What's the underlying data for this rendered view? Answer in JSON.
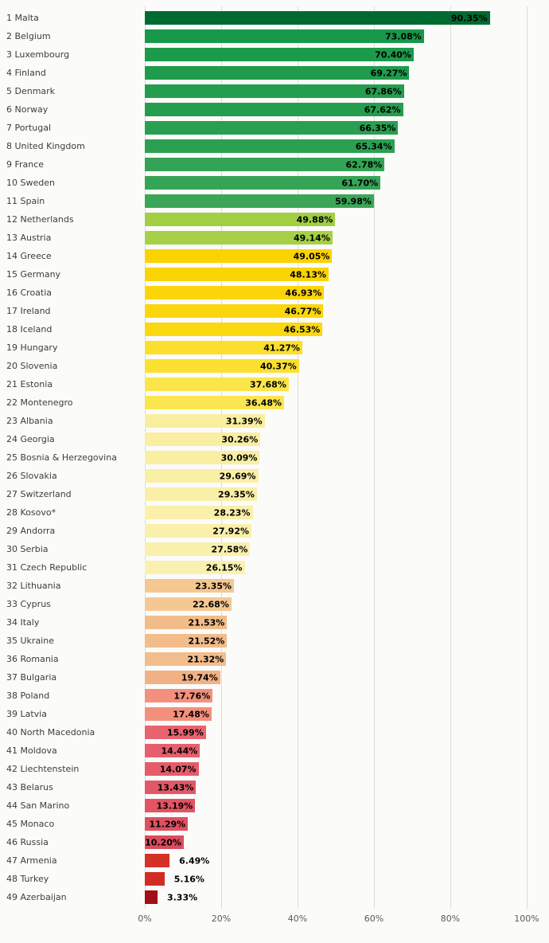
{
  "chart_data": {
    "type": "bar",
    "orientation": "horizontal",
    "title": "",
    "xlabel": "",
    "ylabel": "",
    "xlim": [
      0,
      100
    ],
    "grid": true,
    "x_ticks": [
      "0%",
      "20%",
      "40%",
      "60%",
      "80%",
      "100%"
    ],
    "rows": [
      {
        "rank": 1,
        "country": "Malta",
        "value": 90.35,
        "label": "90.35%",
        "color": "#006b31"
      },
      {
        "rank": 2,
        "country": "Belgium",
        "value": 73.08,
        "label": "73.08%",
        "color": "#17984a"
      },
      {
        "rank": 3,
        "country": "Luxembourg",
        "value": 70.4,
        "label": "70.40%",
        "color": "#1c9a4c"
      },
      {
        "rank": 4,
        "country": "Finland",
        "value": 69.27,
        "label": "69.27%",
        "color": "#1f9b4d"
      },
      {
        "rank": 5,
        "country": "Denmark",
        "value": 67.86,
        "label": "67.86%",
        "color": "#239d4e"
      },
      {
        "rank": 6,
        "country": "Norway",
        "value": 67.62,
        "label": "67.62%",
        "color": "#259d4f"
      },
      {
        "rank": 7,
        "country": "Portugal",
        "value": 66.35,
        "label": "66.35%",
        "color": "#299f51"
      },
      {
        "rank": 8,
        "country": "United Kingdom",
        "value": 65.34,
        "label": "65.34%",
        "color": "#2ca052"
      },
      {
        "rank": 9,
        "country": "France",
        "value": 62.78,
        "label": "62.78%",
        "color": "#33a355"
      },
      {
        "rank": 10,
        "country": "Sweden",
        "value": 61.7,
        "label": "61.70%",
        "color": "#36a456"
      },
      {
        "rank": 11,
        "country": "Spain",
        "value": 59.98,
        "label": "59.98%",
        "color": "#3ba658"
      },
      {
        "rank": 12,
        "country": "Netherlands",
        "value": 49.88,
        "label": "49.88%",
        "color": "#a2ce44"
      },
      {
        "rank": 13,
        "country": "Austria",
        "value": 49.14,
        "label": "49.14%",
        "color": "#a6d046"
      },
      {
        "rank": 14,
        "country": "Greece",
        "value": 49.05,
        "label": "49.05%",
        "color": "#fbd301"
      },
      {
        "rank": 15,
        "country": "Germany",
        "value": 48.13,
        "label": "48.13%",
        "color": "#fbd405"
      },
      {
        "rank": 16,
        "country": "Croatia",
        "value": 46.93,
        "label": "46.93%",
        "color": "#fbd50a"
      },
      {
        "rank": 17,
        "country": "Ireland",
        "value": 46.77,
        "label": "46.77%",
        "color": "#fbd60d"
      },
      {
        "rank": 18,
        "country": "Iceland",
        "value": 46.53,
        "label": "46.53%",
        "color": "#fbd710"
      },
      {
        "rank": 19,
        "country": "Hungary",
        "value": 41.27,
        "label": "41.27%",
        "color": "#fbdf2c"
      },
      {
        "rank": 20,
        "country": "Slovenia",
        "value": 40.37,
        "label": "40.37%",
        "color": "#fbe032"
      },
      {
        "rank": 21,
        "country": "Estonia",
        "value": 37.68,
        "label": "37.68%",
        "color": "#fce54a"
      },
      {
        "rank": 22,
        "country": "Montenegro",
        "value": 36.48,
        "label": "36.48%",
        "color": "#fce650"
      },
      {
        "rank": 23,
        "country": "Albania",
        "value": 31.39,
        "label": "31.39%",
        "color": "#f9ee9e"
      },
      {
        "rank": 24,
        "country": "Georgia",
        "value": 30.26,
        "label": "30.26%",
        "color": "#f9eea1"
      },
      {
        "rank": 25,
        "country": "Bosnia & Herzegovina",
        "value": 30.09,
        "label": "30.09%",
        "color": "#f9efa3"
      },
      {
        "rank": 26,
        "country": "Slovakia",
        "value": 29.69,
        "label": "29.69%",
        "color": "#f9efa5"
      },
      {
        "rank": 27,
        "country": "Switzerland",
        "value": 29.35,
        "label": "29.35%",
        "color": "#f9efa7"
      },
      {
        "rank": 28,
        "country": "Kosovo*",
        "value": 28.23,
        "label": "28.23%",
        "color": "#faf0a9"
      },
      {
        "rank": 29,
        "country": "Andorra",
        "value": 27.92,
        "label": "27.92%",
        "color": "#faf0ab"
      },
      {
        "rank": 30,
        "country": "Serbia",
        "value": 27.58,
        "label": "27.58%",
        "color": "#faf0ad"
      },
      {
        "rank": 31,
        "country": "Czech Republic",
        "value": 26.15,
        "label": "26.15%",
        "color": "#faf1b0"
      },
      {
        "rank": 32,
        "country": "Lithuania",
        "value": 23.35,
        "label": "23.35%",
        "color": "#f5c791"
      },
      {
        "rank": 33,
        "country": "Cyprus",
        "value": 22.68,
        "label": "22.68%",
        "color": "#f5c893"
      },
      {
        "rank": 34,
        "country": "Italy",
        "value": 21.53,
        "label": "21.53%",
        "color": "#f2bc89"
      },
      {
        "rank": 35,
        "country": "Ukraine",
        "value": 21.52,
        "label": "21.52%",
        "color": "#f2bc8b"
      },
      {
        "rank": 36,
        "country": "Romania",
        "value": 21.32,
        "label": "21.32%",
        "color": "#f2bd8d"
      },
      {
        "rank": 37,
        "country": "Bulgaria",
        "value": 19.74,
        "label": "19.74%",
        "color": "#f1b185"
      },
      {
        "rank": 38,
        "country": "Poland",
        "value": 17.76,
        "label": "17.76%",
        "color": "#f3907d"
      },
      {
        "rank": 39,
        "country": "Latvia",
        "value": 17.48,
        "label": "17.48%",
        "color": "#f38f7b"
      },
      {
        "rank": 40,
        "country": "North Macedonia",
        "value": 15.99,
        "label": "15.99%",
        "color": "#e96370"
      },
      {
        "rank": 41,
        "country": "Moldova",
        "value": 14.44,
        "label": "14.44%",
        "color": "#e75f6d"
      },
      {
        "rank": 42,
        "country": "Liechtenstein",
        "value": 14.07,
        "label": "14.07%",
        "color": "#e55c6a"
      },
      {
        "rank": 43,
        "country": "Belarus",
        "value": 13.43,
        "label": "13.43%",
        "color": "#e35867"
      },
      {
        "rank": 44,
        "country": "San Marino",
        "value": 13.19,
        "label": "13.19%",
        "color": "#e15464"
      },
      {
        "rank": 45,
        "country": "Monaco",
        "value": 11.29,
        "label": "11.29%",
        "color": "#df5061"
      },
      {
        "rank": 46,
        "country": "Russia",
        "value": 10.2,
        "label": "10.20%",
        "color": "#dd4c5e"
      },
      {
        "rank": 47,
        "country": "Armenia",
        "value": 6.49,
        "label": "6.49%",
        "color": "#d53127"
      },
      {
        "rank": 48,
        "country": "Turkey",
        "value": 5.16,
        "label": "5.16%",
        "color": "#d12c24"
      },
      {
        "rank": 49,
        "country": "Azerbaijan",
        "value": 3.33,
        "label": "3.33%",
        "color": "#a30f15"
      }
    ]
  },
  "layout": {
    "grid_color": "#dcdcd6",
    "label_color": "#3c3c3c",
    "tick_color": "#5a5a5a",
    "background": "#fbfbf9"
  }
}
